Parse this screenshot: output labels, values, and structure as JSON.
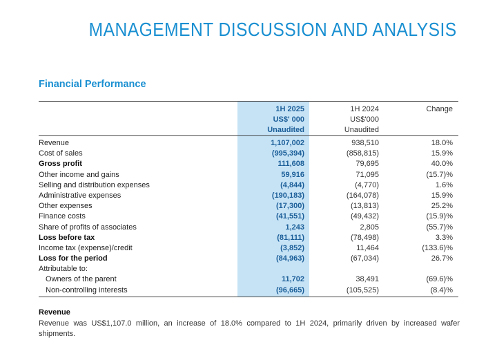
{
  "page_title": "MANAGEMENT DISCUSSION AND ANALYSIS",
  "section_title": "Financial Performance",
  "table": {
    "headers": {
      "col1": [
        "1H 2025",
        "US$' 000",
        "Unaudited"
      ],
      "col2": [
        "1H 2024",
        "US$'000",
        "Unaudited"
      ],
      "col3": [
        "Change"
      ]
    },
    "rows": [
      {
        "label": "Revenue",
        "v1": "1,107,002",
        "v2": "938,510",
        "v3": "18.0%",
        "bold": false,
        "indent": false
      },
      {
        "label": "Cost of sales",
        "v1": "(995,394)",
        "v2": "(858,815)",
        "v3": "15.9%",
        "bold": false,
        "indent": false
      },
      {
        "label": "Gross profit",
        "v1": "111,608",
        "v2": "79,695",
        "v3": "40.0%",
        "bold": true,
        "indent": false
      },
      {
        "label": "Other income and gains",
        "v1": "59,916",
        "v2": "71,095",
        "v3": "(15.7)%",
        "bold": false,
        "indent": false
      },
      {
        "label": "Selling and distribution expenses",
        "v1": "(4,844)",
        "v2": "(4,770)",
        "v3": "1.6%",
        "bold": false,
        "indent": false
      },
      {
        "label": "Administrative expenses",
        "v1": "(190,183)",
        "v2": "(164,078)",
        "v3": "15.9%",
        "bold": false,
        "indent": false
      },
      {
        "label": "Other expenses",
        "v1": "(17,300)",
        "v2": "(13,813)",
        "v3": "25.2%",
        "bold": false,
        "indent": false
      },
      {
        "label": "Finance costs",
        "v1": "(41,551)",
        "v2": "(49,432)",
        "v3": "(15.9)%",
        "bold": false,
        "indent": false
      },
      {
        "label": "Share of profits of associates",
        "v1": "1,243",
        "v2": "2,805",
        "v3": "(55.7)%",
        "bold": false,
        "indent": false
      },
      {
        "label": "Loss before tax",
        "v1": "(81,111)",
        "v2": "(78,498)",
        "v3": "3.3%",
        "bold": true,
        "indent": false
      },
      {
        "label": "Income tax (expense)/credit",
        "v1": "(3,852)",
        "v2": "11,464",
        "v3": "(133.6)%",
        "bold": false,
        "indent": false
      },
      {
        "label": "Loss for the period",
        "v1": "(84,963)",
        "v2": "(67,034)",
        "v3": "26.7%",
        "bold": true,
        "indent": false
      },
      {
        "label": "Attributable to:",
        "v1": "",
        "v2": "",
        "v3": "",
        "bold": false,
        "indent": false
      },
      {
        "label": "Owners of the parent",
        "v1": "11,702",
        "v2": "38,491",
        "v3": "(69.6)%",
        "bold": false,
        "indent": true
      },
      {
        "label": "Non-controlling interests",
        "v1": "(96,665)",
        "v2": "(105,525)",
        "v3": "(8.4)%",
        "bold": false,
        "indent": true
      }
    ]
  },
  "revenue_section": {
    "title": "Revenue",
    "body": "Revenue was US$1,107.0 million, an increase of 18.0% compared to 1H 2024, primarily driven by increased wafer shipments."
  },
  "colors": {
    "accent": "#1a8fd1",
    "highlight": "#c6e3f6",
    "highlight_text": "#1b5e98"
  }
}
